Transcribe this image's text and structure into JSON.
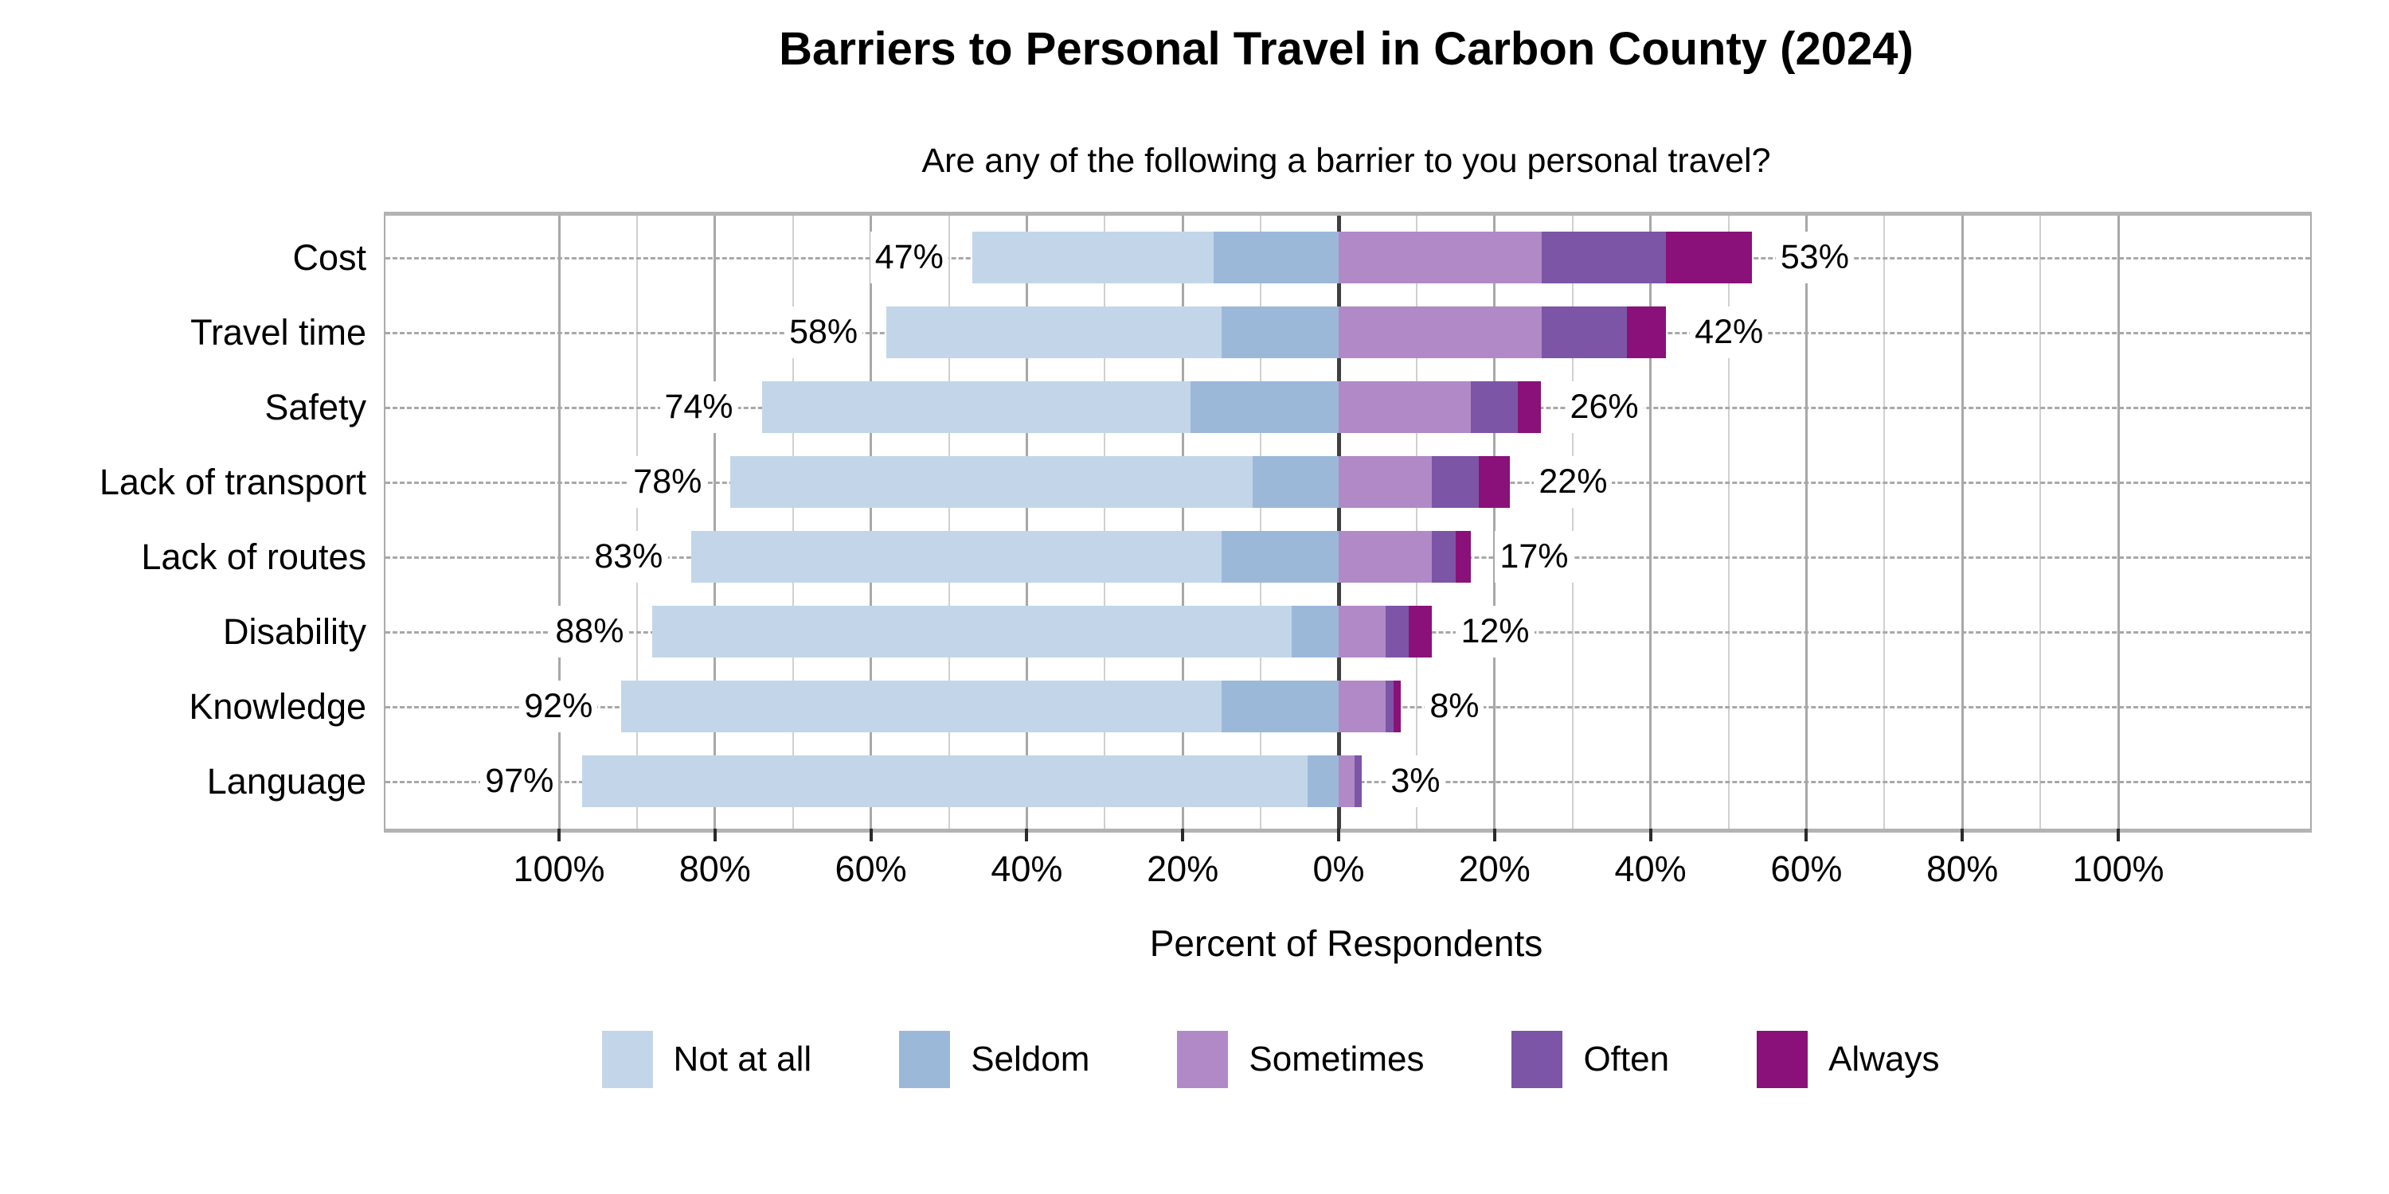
{
  "title": "Barriers to Personal Travel in Carbon County (2024)",
  "subtitle": "Are any of the following a barrier to you personal travel?",
  "x_axis_label": "Percent of Respondents",
  "legend": {
    "items": [
      {
        "label": "Not at all",
        "color": "#c3d6e9"
      },
      {
        "label": "Seldom",
        "color": "#9cb8d9"
      },
      {
        "label": "Sometimes",
        "color": "#b189c6"
      },
      {
        "label": "Often",
        "color": "#7c55a6"
      },
      {
        "label": "Always",
        "color": "#8a1179"
      }
    ]
  },
  "chart_data": {
    "type": "diverging_stacked_bar",
    "title": "Barriers to Personal Travel in Carbon County (2024)",
    "subtitle": "Are any of the following a barrier to you personal travel?",
    "xlabel": "Percent of Respondents",
    "categories": [
      "Cost",
      "Travel time",
      "Safety",
      "Lack of transport",
      "Lack of routes",
      "Disability",
      "Knowledge",
      "Language"
    ],
    "negative_side_series": [
      "Not at all",
      "Seldom"
    ],
    "positive_side_series": [
      "Sometimes",
      "Often",
      "Always"
    ],
    "series": [
      {
        "name": "Not at all",
        "side": "left",
        "color": "#c3d6e9",
        "values": [
          31,
          43,
          55,
          67,
          68,
          82,
          77,
          93
        ]
      },
      {
        "name": "Seldom",
        "side": "left",
        "color": "#9cb8d9",
        "values": [
          16,
          15,
          19,
          11,
          15,
          6,
          15,
          4
        ]
      },
      {
        "name": "Sometimes",
        "side": "right",
        "color": "#b189c6",
        "values": [
          26,
          26,
          17,
          12,
          12,
          6,
          6,
          2
        ]
      },
      {
        "name": "Often",
        "side": "right",
        "color": "#7c55a6",
        "values": [
          16,
          11,
          6,
          6,
          3,
          3,
          1,
          1
        ]
      },
      {
        "name": "Always",
        "side": "right",
        "color": "#8a1179",
        "values": [
          11,
          5,
          3,
          4,
          2,
          3,
          1,
          0
        ]
      }
    ],
    "left_total_labels": [
      "47%",
      "58%",
      "74%",
      "78%",
      "83%",
      "88%",
      "92%",
      "97%"
    ],
    "right_total_labels": [
      "53%",
      "42%",
      "26%",
      "22%",
      "17%",
      "12%",
      "8%",
      "3%"
    ],
    "axis": {
      "tick_values": [
        -100,
        -80,
        -60,
        -40,
        -20,
        0,
        20,
        40,
        60,
        80,
        100
      ],
      "tick_labels": [
        "100%",
        "80%",
        "60%",
        "40%",
        "20%",
        "0%",
        "20%",
        "40%",
        "60%",
        "80%",
        "100%"
      ],
      "gridline_step_pct": 10,
      "range_pct": [
        -122,
        125
      ],
      "zero_line": true
    },
    "legend_position": "bottom",
    "grid": true
  },
  "style": {
    "grid_minor_color": "#d0d0d0",
    "grid_major_color": "#a8a8a8",
    "zero_line_color": "#3f3f3f",
    "row_dash_color": "#a8a8a8",
    "spine_color": "#b3b3b3",
    "label_bg": "#ffffff"
  }
}
